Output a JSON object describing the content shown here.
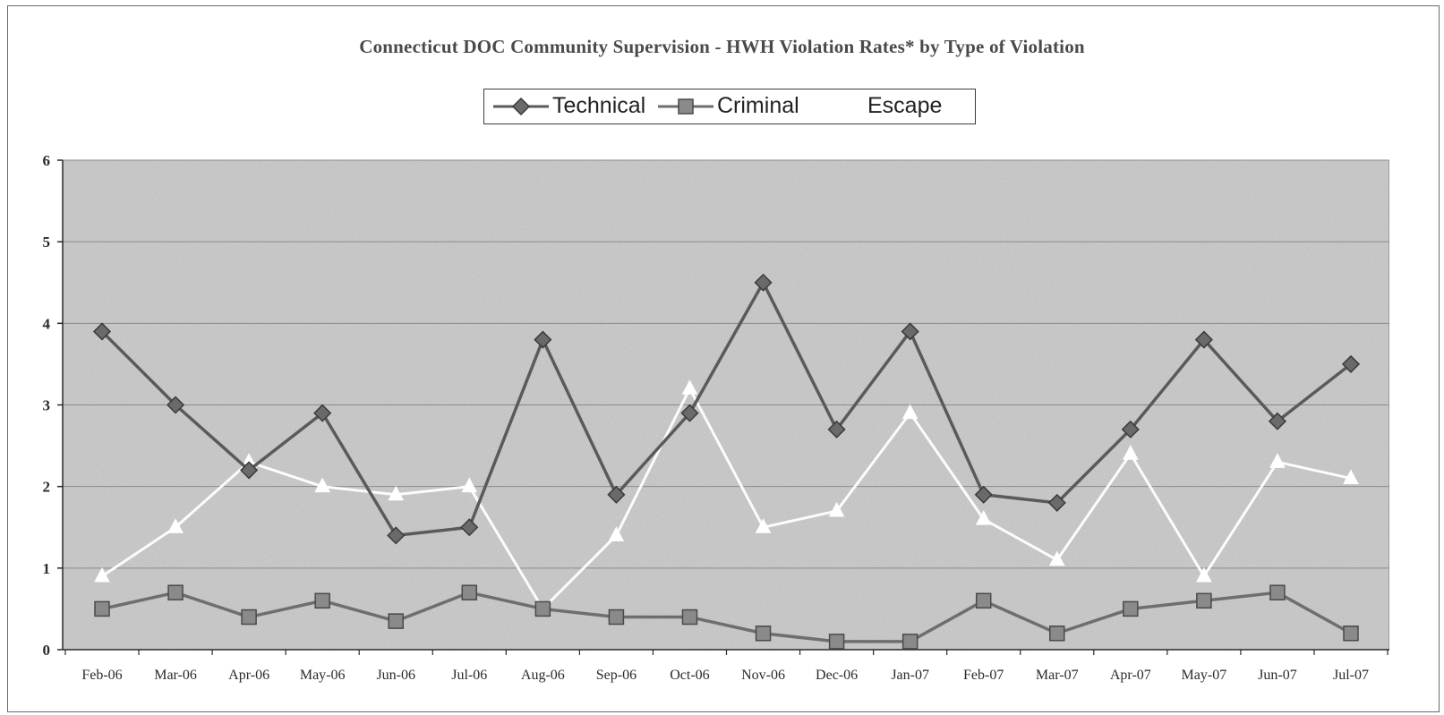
{
  "chart_data": {
    "type": "line",
    "title": "Connecticut DOC Community Supervision - HWH Violation Rates* by Type of Violation",
    "xlabel": "",
    "ylabel": "",
    "ylim": [
      0,
      6
    ],
    "yticks": [
      "0",
      "1",
      "2",
      "3",
      "4",
      "5",
      "6"
    ],
    "grid": true,
    "legend_position": "top-center",
    "categories": [
      "Feb-06",
      "Mar-06",
      "Apr-06",
      "May-06",
      "Jun-06",
      "Jul-06",
      "Aug-06",
      "Sep-06",
      "Oct-06",
      "Nov-06",
      "Dec-06",
      "Jan-07",
      "Feb-07",
      "Mar-07",
      "Apr-07",
      "May-07",
      "Jun-07",
      "Jul-07"
    ],
    "series": [
      {
        "name": "Technical",
        "marker": "diamond",
        "color": "#5a5a5a",
        "values": [
          3.9,
          3.0,
          2.2,
          2.9,
          1.4,
          1.5,
          3.8,
          1.9,
          2.9,
          4.5,
          2.7,
          3.9,
          1.9,
          1.8,
          2.7,
          3.8,
          2.8,
          3.5
        ]
      },
      {
        "name": "Criminal",
        "marker": "square",
        "color": "#6e6e6e",
        "values": [
          0.5,
          0.7,
          0.4,
          0.6,
          0.35,
          0.7,
          0.5,
          0.4,
          0.4,
          0.2,
          0.1,
          0.1,
          0.6,
          0.2,
          0.5,
          0.6,
          0.7,
          0.2
        ]
      },
      {
        "name": "Escape",
        "marker": "triangle",
        "color": "#ffffff",
        "values": [
          0.9,
          1.5,
          2.3,
          2.0,
          1.9,
          2.0,
          0.5,
          1.4,
          3.2,
          1.5,
          1.7,
          2.9,
          1.6,
          1.1,
          2.4,
          0.9,
          2.3,
          2.1
        ]
      }
    ],
    "colors": {
      "plot_background": "#c8c8c8",
      "gridline": "#8a8a8a",
      "axis": "#2a2a2a"
    }
  }
}
